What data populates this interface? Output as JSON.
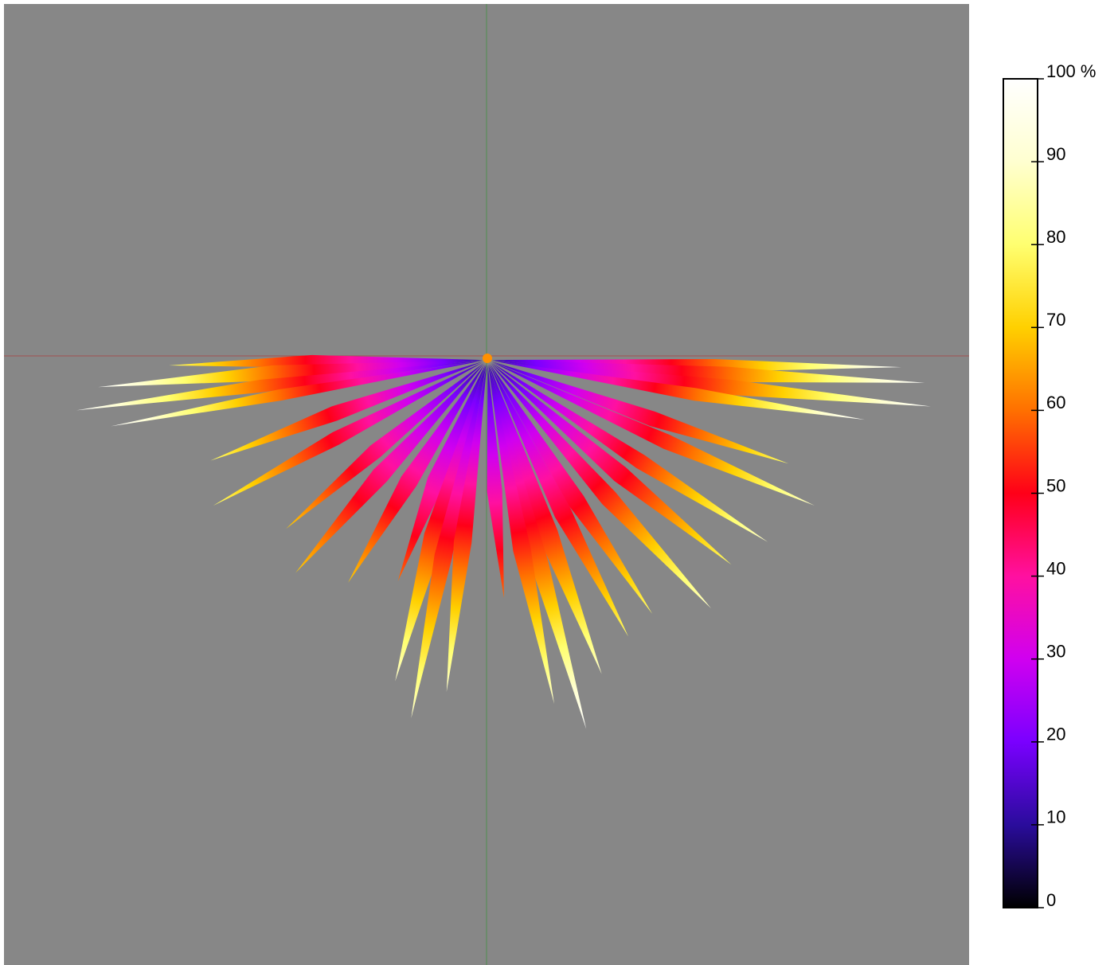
{
  "chart_data": {
    "type": "colorbar",
    "zlim": [
      0,
      100
    ],
    "zticks": [
      0,
      10,
      20,
      30,
      40,
      50,
      60,
      70,
      80,
      90,
      {
        "value": 100,
        "label": "100 %"
      }
    ],
    "colormap": [
      "#000000",
      "#2a0c9c",
      "#7a00ff",
      "#d000f0",
      "#ff10a0",
      "#ff0018",
      "#ff7000",
      "#ffd000",
      "#ffff70",
      "#ffffd0",
      "#ffffff"
    ]
  }
}
